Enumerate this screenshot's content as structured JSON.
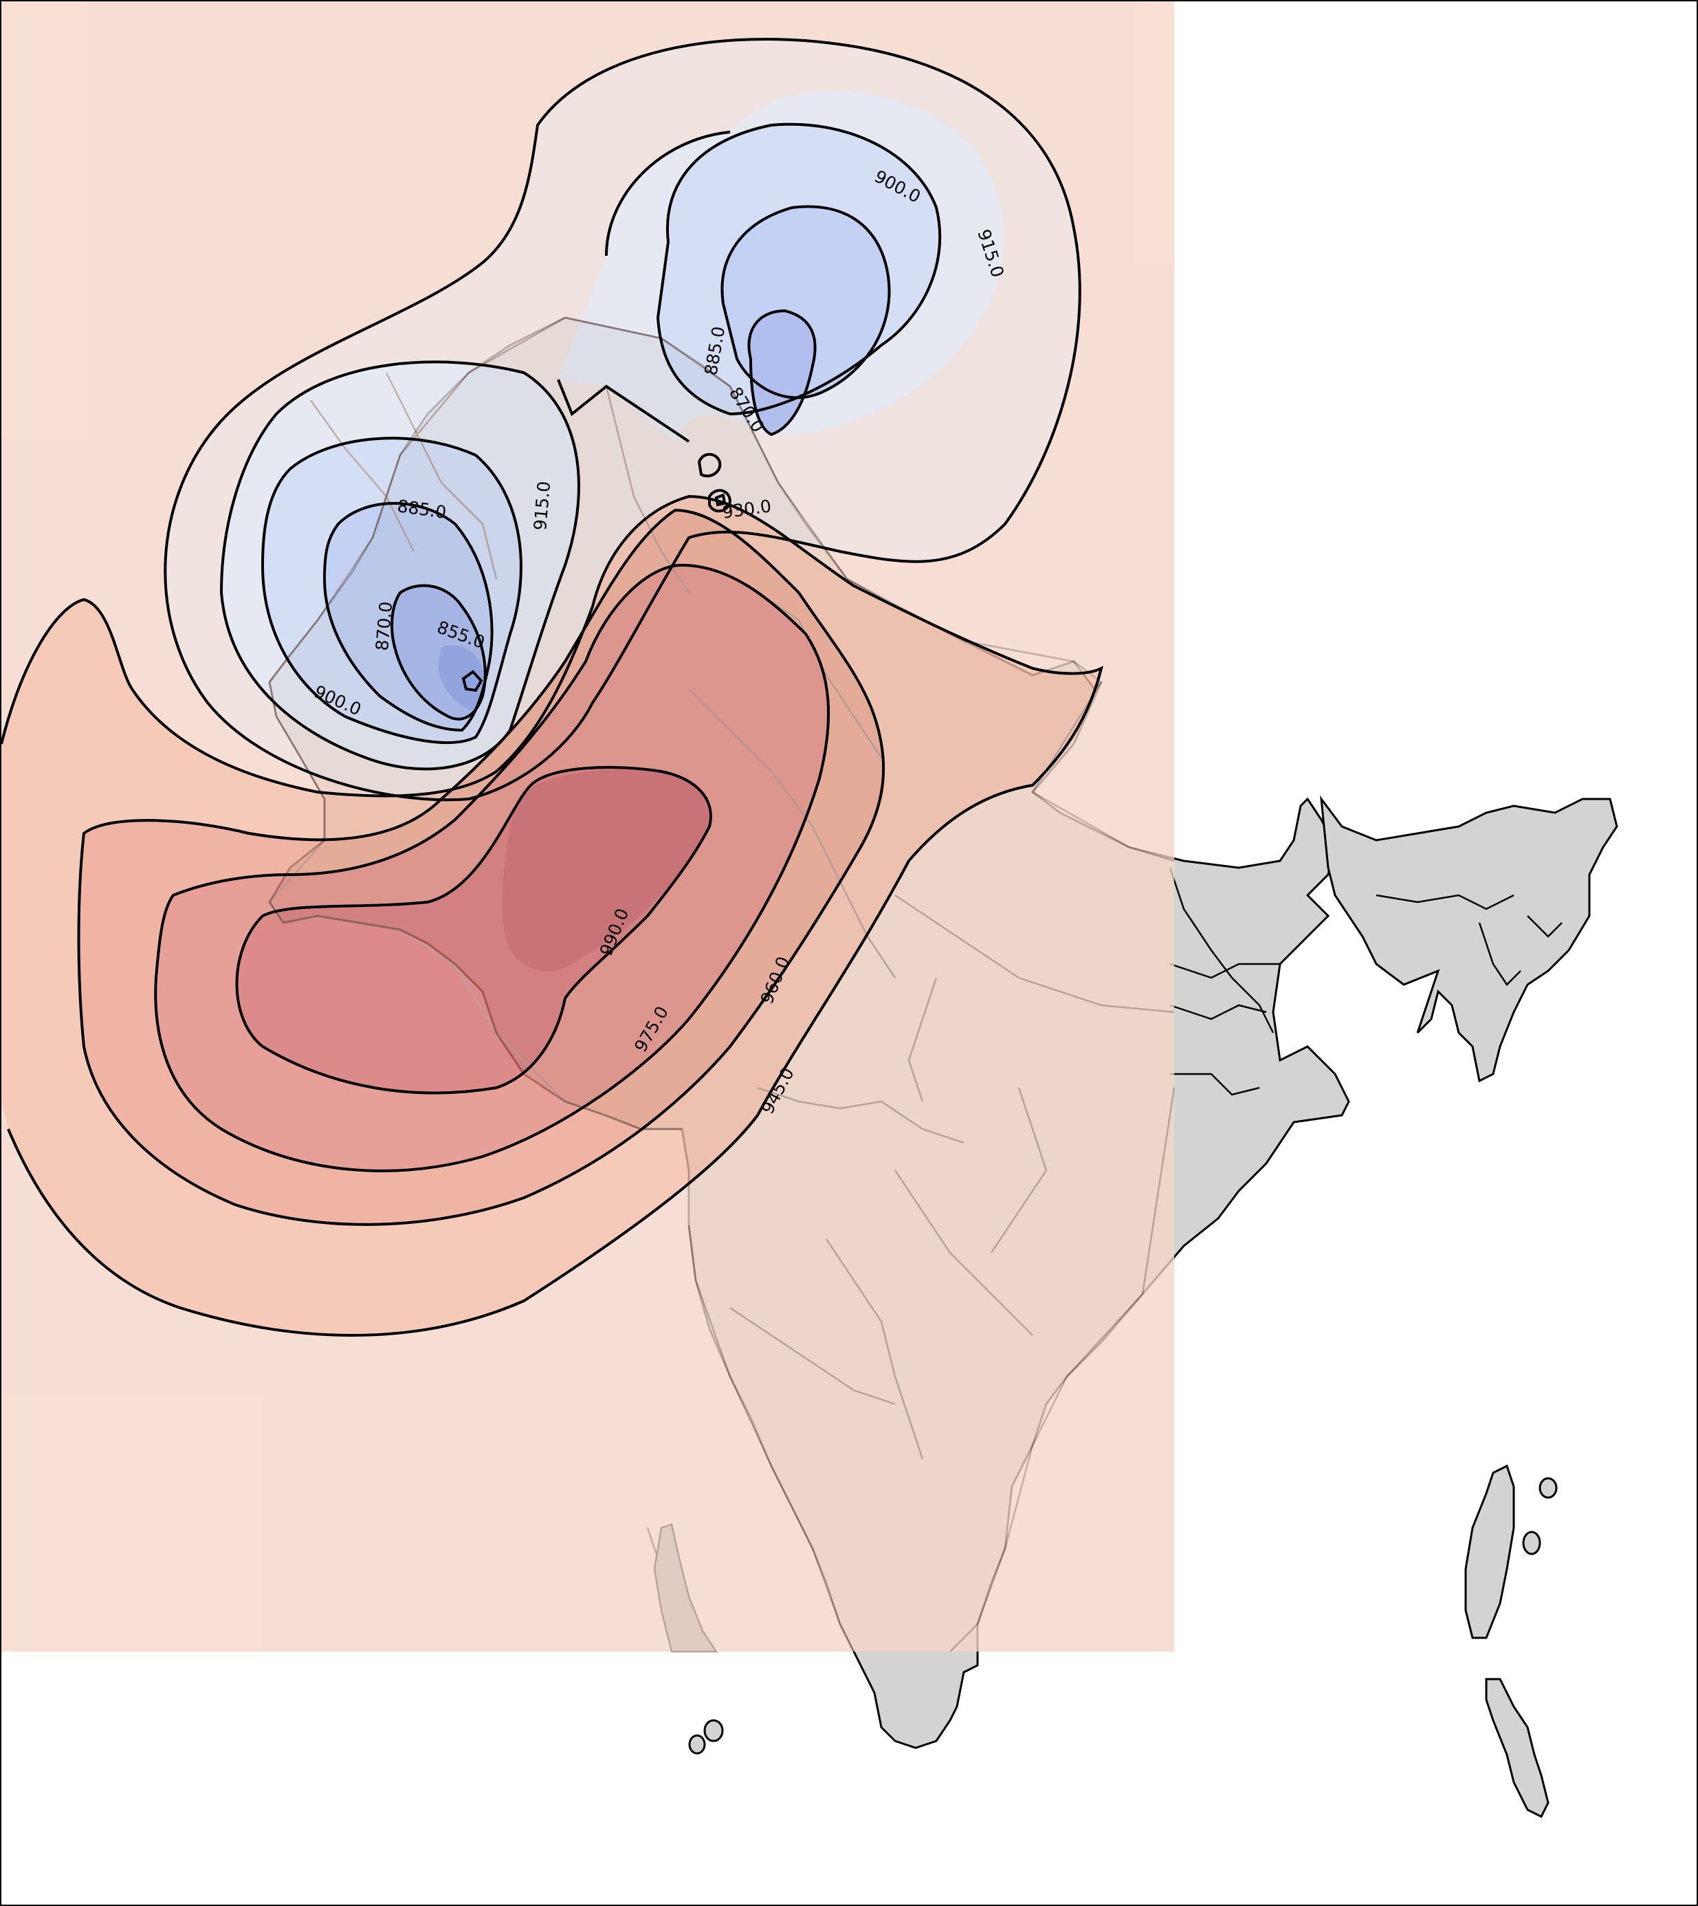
{
  "colors": {
    "land": "#d3d3d3",
    "overlay_base": "#f5d6c8",
    "border_inner": "#a58a80",
    "contour_line": "#000000",
    "fill_blue_light": "#dfe3ee",
    "fill_blue_2": "#c9d6f2",
    "fill_blue_3": "#b3c5f1",
    "fill_blue_4": "#9aaeea",
    "fill_blue_5": "#7f97e2",
    "fill_warm_light": "#ecdcd8",
    "fill_red_1": "#f4bca6",
    "fill_red_2": "#eba08a",
    "fill_red_3": "#e0867a",
    "fill_red_4": "#d46a6a",
    "fill_red_5": "#c55a5e"
  },
  "contour_labels": [
    {
      "text": "900.0",
      "name": "contour-label-900-north"
    },
    {
      "text": "915.0",
      "name": "contour-label-915-north"
    },
    {
      "text": "885.0",
      "name": "contour-label-885-north"
    },
    {
      "text": "870.0",
      "name": "contour-label-870-north"
    },
    {
      "text": "930.0",
      "name": "contour-label-930"
    },
    {
      "text": "915.0",
      "name": "contour-label-915-west"
    },
    {
      "text": "885.0",
      "name": "contour-label-885-west"
    },
    {
      "text": "870.0",
      "name": "contour-label-870-west"
    },
    {
      "text": "855.0",
      "name": "contour-label-855"
    },
    {
      "text": "900.0",
      "name": "contour-label-900-west"
    },
    {
      "text": "990.0",
      "name": "contour-label-990"
    },
    {
      "text": "975.0",
      "name": "contour-label-975"
    },
    {
      "text": "960.0",
      "name": "contour-label-960"
    },
    {
      "text": "945.0",
      "name": "contour-label-945"
    }
  ]
}
